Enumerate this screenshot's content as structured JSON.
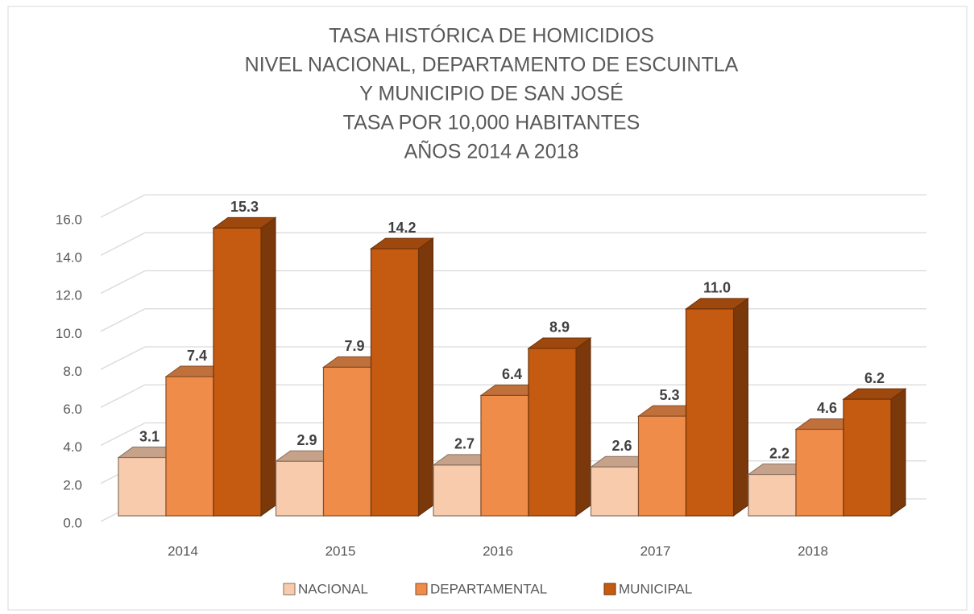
{
  "chart_data": {
    "type": "bar3d",
    "title": [
      "TASA HISTÓRICA DE HOMICIDIOS",
      "NIVEL NACIONAL, DEPARTAMENTO DE ESCUINTLA",
      "Y MUNICIPIO DE SAN JOSÉ",
      "TASA POR 10,000 HABITANTES",
      "AÑOS 2014 A 2018"
    ],
    "categories": [
      "2014",
      "2015",
      "2016",
      "2017",
      "2018"
    ],
    "series": [
      {
        "name": "NACIONAL",
        "color": "#f8cbad",
        "values": [
          3.1,
          2.9,
          2.7,
          2.6,
          2.2
        ],
        "value_labels": [
          "3.1",
          "2.9",
          "2.7",
          "2.6",
          "2.2"
        ]
      },
      {
        "name": "DEPARTAMENTAL",
        "color": "#f08c4a",
        "values": [
          7.4,
          7.9,
          6.4,
          5.3,
          4.6
        ],
        "value_labels": [
          "7.4",
          "7.9",
          "6.4",
          "5.3",
          "4.6"
        ]
      },
      {
        "name": "MUNICIPAL",
        "color": "#c55a11",
        "values": [
          15.3,
          14.2,
          8.9,
          11.0,
          6.2
        ],
        "value_labels": [
          "15.3",
          "14.2",
          "8.9",
          "11.0",
          "6.2"
        ]
      }
    ],
    "ylim": [
      0,
      16
    ],
    "yticks": [
      {
        "value": 0,
        "label": "0.0"
      },
      {
        "value": 2,
        "label": "2.0"
      },
      {
        "value": 4,
        "label": "4.0"
      },
      {
        "value": 6,
        "label": "6.0"
      },
      {
        "value": 8,
        "label": "8.0"
      },
      {
        "value": 10,
        "label": "10.0"
      },
      {
        "value": 12,
        "label": "12.0"
      },
      {
        "value": 14,
        "label": "14.0"
      },
      {
        "value": 16,
        "label": "16.0"
      }
    ],
    "grid": true,
    "legend": "bottom"
  }
}
